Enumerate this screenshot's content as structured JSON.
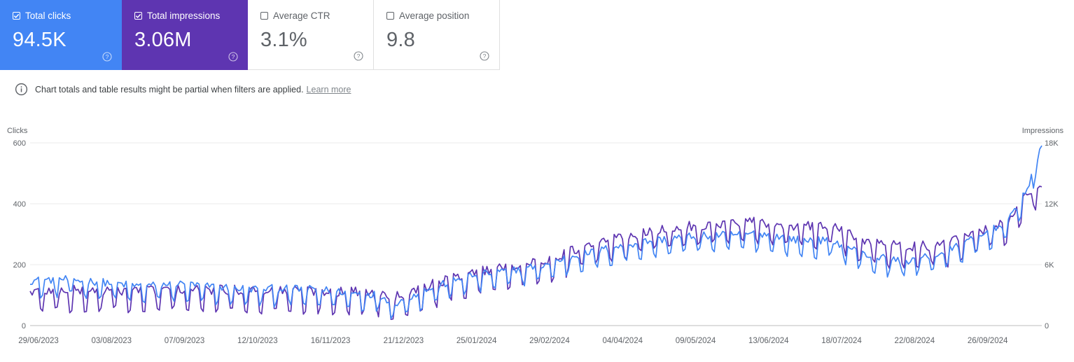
{
  "metrics": [
    {
      "label": "Total clicks",
      "value": "94.5K",
      "checked": true,
      "color": "#4285f4"
    },
    {
      "label": "Total impressions",
      "value": "3.06M",
      "checked": true,
      "color": "#5e35b1"
    },
    {
      "label": "Average CTR",
      "value": "3.1%",
      "checked": false,
      "color": "#ffffff"
    },
    {
      "label": "Average position",
      "value": "9.8",
      "checked": false,
      "color": "#ffffff"
    }
  ],
  "notice": {
    "text": "Chart totals and table results might be partial when filters are applied.",
    "link": "Learn more"
  },
  "icons": {
    "checkbox": "checkbox-icon",
    "help": "help-circle-icon",
    "info": "info-circle-icon"
  },
  "chart_data": {
    "type": "line",
    "left_axis": {
      "label": "Clicks",
      "ticks": [
        "0",
        "200",
        "400",
        "600"
      ],
      "range": [
        0,
        600
      ]
    },
    "right_axis": {
      "label": "Impressions",
      "ticks": [
        "0",
        "6K",
        "12K",
        "18K"
      ],
      "range": [
        0,
        18000
      ]
    },
    "x_tick_labels": [
      "29/06/2023",
      "03/08/2023",
      "07/09/2023",
      "12/10/2023",
      "16/11/2023",
      "21/12/2023",
      "25/01/2024",
      "29/02/2024",
      "04/04/2024",
      "09/05/2024",
      "13/06/2024",
      "18/07/2024",
      "22/08/2024",
      "26/09/2024"
    ],
    "x_range": [
      "2023-06-29",
      "2024-10-26"
    ],
    "grid": true,
    "series": [
      {
        "name": "Clicks",
        "axis": "left",
        "color": "#4285f4",
        "anchors": [
          [
            "2023-06-29",
            135
          ],
          [
            "2023-07-15",
            140
          ],
          [
            "2023-08-03",
            130
          ],
          [
            "2023-08-20",
            118
          ],
          [
            "2023-09-07",
            125
          ],
          [
            "2023-09-25",
            115
          ],
          [
            "2023-10-12",
            108
          ],
          [
            "2023-10-30",
            110
          ],
          [
            "2023-11-16",
            105
          ],
          [
            "2023-12-01",
            95
          ],
          [
            "2023-12-12",
            90
          ],
          [
            "2023-12-21",
            62
          ],
          [
            "2024-01-05",
            105
          ],
          [
            "2024-01-25",
            150
          ],
          [
            "2024-02-10",
            165
          ],
          [
            "2024-02-29",
            185
          ],
          [
            "2024-03-15",
            215
          ],
          [
            "2024-04-04",
            245
          ],
          [
            "2024-04-20",
            265
          ],
          [
            "2024-05-09",
            280
          ],
          [
            "2024-05-25",
            285
          ],
          [
            "2024-06-13",
            290
          ],
          [
            "2024-06-30",
            270
          ],
          [
            "2024-07-18",
            265
          ],
          [
            "2024-08-05",
            215
          ],
          [
            "2024-08-22",
            200
          ],
          [
            "2024-09-08",
            225
          ],
          [
            "2024-09-26",
            280
          ],
          [
            "2024-10-10",
            330
          ],
          [
            "2024-10-20",
            450
          ],
          [
            "2024-10-26",
            580
          ]
        ],
        "amplitude": 28,
        "period_days": 7
      },
      {
        "name": "Impressions",
        "axis": "right",
        "color": "#5e35b1",
        "anchors": [
          [
            "2023-06-29",
            2850
          ],
          [
            "2023-07-15",
            3000
          ],
          [
            "2023-08-03",
            2950
          ],
          [
            "2023-08-20",
            3000
          ],
          [
            "2023-09-07",
            3050
          ],
          [
            "2023-09-25",
            3000
          ],
          [
            "2023-10-12",
            3000
          ],
          [
            "2023-10-30",
            2950
          ],
          [
            "2023-11-16",
            2900
          ],
          [
            "2023-12-01",
            2850
          ],
          [
            "2023-12-12",
            2800
          ],
          [
            "2023-12-21",
            2400
          ],
          [
            "2024-01-05",
            3400
          ],
          [
            "2024-01-25",
            4600
          ],
          [
            "2024-02-10",
            5300
          ],
          [
            "2024-02-29",
            5700
          ],
          [
            "2024-03-15",
            6900
          ],
          [
            "2024-04-04",
            8100
          ],
          [
            "2024-04-20",
            8700
          ],
          [
            "2024-05-09",
            9300
          ],
          [
            "2024-05-25",
            9600
          ],
          [
            "2024-06-13",
            9700
          ],
          [
            "2024-06-30",
            9300
          ],
          [
            "2024-07-18",
            9300
          ],
          [
            "2024-08-05",
            7700
          ],
          [
            "2024-08-22",
            7300
          ],
          [
            "2024-09-08",
            7400
          ],
          [
            "2024-09-26",
            8700
          ],
          [
            "2024-10-10",
            9900
          ],
          [
            "2024-10-20",
            12800
          ],
          [
            "2024-10-26",
            12900
          ]
        ],
        "amplitude": 1100,
        "period_days": 7
      }
    ]
  }
}
